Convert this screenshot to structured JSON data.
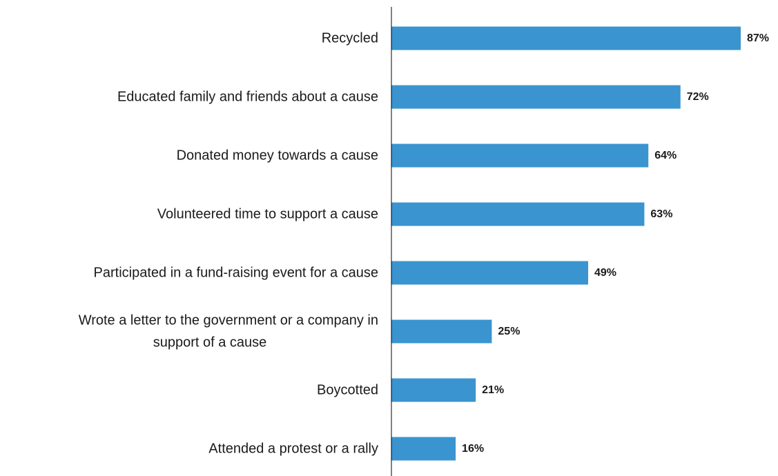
{
  "chart_data": {
    "type": "bar",
    "orientation": "horizontal",
    "categories": [
      "Recycled",
      "Educated family and friends about a cause",
      "Donated money towards a cause",
      "Volunteered time to support a cause",
      "Participated in a fund-raising event for a cause",
      "Wrote a letter to the government or a company in support of a cause",
      "Boycotted",
      "Attended a protest or a rally"
    ],
    "category_lines": [
      [
        "Recycled"
      ],
      [
        "Educated family and friends about a cause"
      ],
      [
        "Donated money towards a cause"
      ],
      [
        "Volunteered time to support a cause"
      ],
      [
        "Participated in a fund-raising event for a cause"
      ],
      [
        "Wrote a letter to the government or a company in",
        "support of a cause"
      ],
      [
        "Boycotted"
      ],
      [
        "Attended a protest or a rally"
      ]
    ],
    "values": [
      87,
      72,
      64,
      63,
      49,
      25,
      21,
      16
    ],
    "value_labels": [
      "87%",
      "72%",
      "64%",
      "63%",
      "49%",
      "25%",
      "21%",
      "16%"
    ],
    "unit": "%",
    "xlim": [
      0,
      87
    ],
    "grid": false,
    "legend": false,
    "bar_color": "#3a94cf",
    "axis_color": "#000000",
    "text_color": "#1a1a1a"
  }
}
